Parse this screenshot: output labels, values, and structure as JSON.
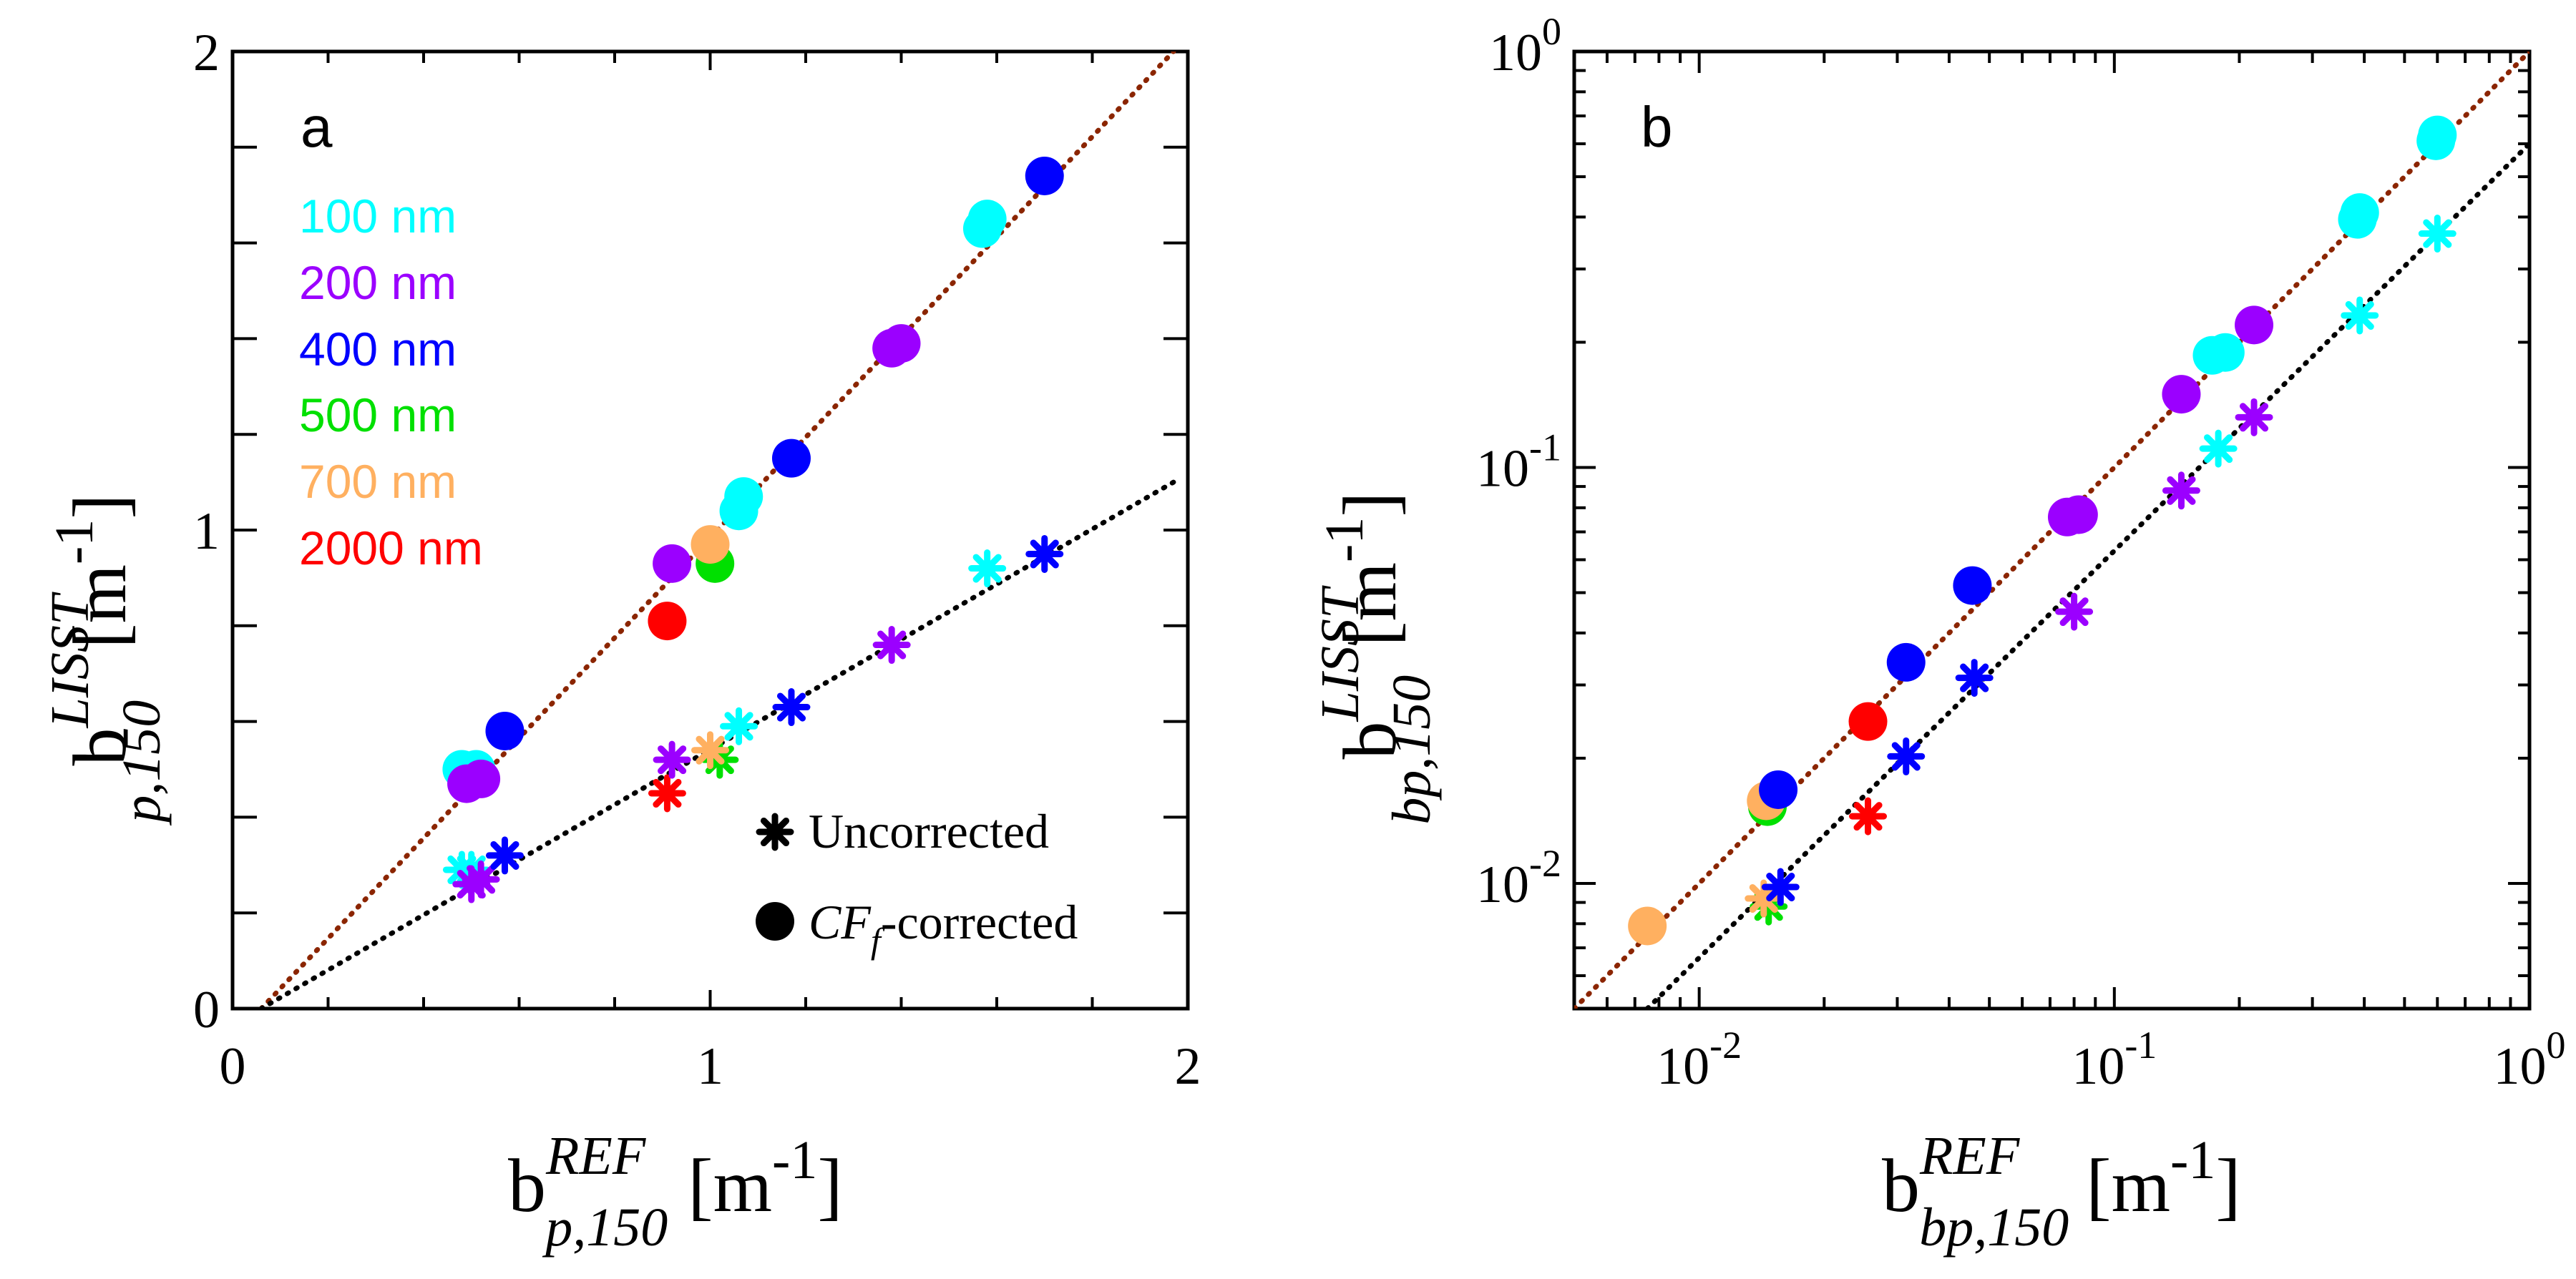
{
  "colors": {
    "100 nm": "#00ffff",
    "200 nm": "#9b00ff",
    "400 nm": "#0000ff",
    "500 nm": "#00e000",
    "700 nm": "#ffb060",
    "2000 nm": "#ff0000",
    "corrected_fit": "#8b2500",
    "uncorrected_fit": "#000000"
  },
  "legend": {
    "sizes": [
      "100 nm",
      "200 nm",
      "400 nm",
      "500 nm",
      "700 nm",
      "2000 nm"
    ],
    "uncorrected": "Uncorrected",
    "corrected_cf": "CF",
    "corrected_sub": "f",
    "corrected_rest": "-corrected"
  },
  "chart_data": [
    {
      "panel": "a",
      "type": "scatter",
      "scale": "linear",
      "xlim": [
        0,
        2
      ],
      "ylim": [
        0,
        2
      ],
      "x_ticks": [
        "0",
        "1",
        "2"
      ],
      "y_ticks": [
        "0",
        "1",
        "2"
      ],
      "x_tick_values": [
        0,
        1,
        2
      ],
      "y_tick_values": [
        0,
        1,
        2
      ],
      "xlabel": {
        "b": "b",
        "sup": "REF",
        "sub": "p,150",
        "unit": "[m",
        "unit_exp": "-1",
        "close": "]"
      },
      "ylabel": {
        "b": "b",
        "sup": "LISST",
        "sub": "p,150",
        "unit": "[m",
        "unit_exp": "-1",
        "close": "]"
      },
      "fit_lines": [
        {
          "name": "CFf-corrected fit",
          "x": [
            0.06,
            1.97
          ],
          "y": [
            0.0,
            2.0
          ]
        },
        {
          "name": "Uncorrected fit",
          "x": [
            0.06,
            1.97
          ],
          "y": [
            0.0,
            1.1
          ]
        }
      ],
      "corrected": [
        {
          "size": "100 nm",
          "x": 0.48,
          "y": 0.5
        },
        {
          "size": "100 nm",
          "x": 0.51,
          "y": 0.5
        },
        {
          "size": "200 nm",
          "x": 0.49,
          "y": 0.47
        },
        {
          "size": "200 nm",
          "x": 0.52,
          "y": 0.48
        },
        {
          "size": "400 nm",
          "x": 0.57,
          "y": 0.58
        },
        {
          "size": "2000 nm",
          "x": 0.91,
          "y": 0.81
        },
        {
          "size": "200 nm",
          "x": 0.92,
          "y": 0.93
        },
        {
          "size": "500 nm",
          "x": 1.01,
          "y": 0.93
        },
        {
          "size": "700 nm",
          "x": 1.0,
          "y": 0.97
        },
        {
          "size": "100 nm",
          "x": 1.06,
          "y": 1.04
        },
        {
          "size": "100 nm",
          "x": 1.07,
          "y": 1.07
        },
        {
          "size": "400 nm",
          "x": 1.17,
          "y": 1.15
        },
        {
          "size": "200 nm",
          "x": 1.38,
          "y": 1.38
        },
        {
          "size": "200 nm",
          "x": 1.4,
          "y": 1.39
        },
        {
          "size": "100 nm",
          "x": 1.57,
          "y": 1.63
        },
        {
          "size": "100 nm",
          "x": 1.58,
          "y": 1.65
        },
        {
          "size": "400 nm",
          "x": 1.7,
          "y": 1.74
        }
      ],
      "uncorrected": [
        {
          "size": "100 nm",
          "x": 0.48,
          "y": 0.29
        },
        {
          "size": "100 nm",
          "x": 0.5,
          "y": 0.29
        },
        {
          "size": "200 nm",
          "x": 0.5,
          "y": 0.26
        },
        {
          "size": "200 nm",
          "x": 0.52,
          "y": 0.27
        },
        {
          "size": "400 nm",
          "x": 0.57,
          "y": 0.32
        },
        {
          "size": "2000 nm",
          "x": 0.91,
          "y": 0.45
        },
        {
          "size": "200 nm",
          "x": 0.92,
          "y": 0.52
        },
        {
          "size": "500 nm",
          "x": 1.02,
          "y": 0.52
        },
        {
          "size": "700 nm",
          "x": 1.0,
          "y": 0.54
        },
        {
          "size": "100 nm",
          "x": 1.06,
          "y": 0.59
        },
        {
          "size": "400 nm",
          "x": 1.17,
          "y": 0.63
        },
        {
          "size": "200 nm",
          "x": 1.38,
          "y": 0.76
        },
        {
          "size": "100 nm",
          "x": 1.58,
          "y": 0.92
        },
        {
          "size": "400 nm",
          "x": 1.7,
          "y": 0.95
        }
      ]
    },
    {
      "panel": "b",
      "type": "scatter",
      "scale": "log",
      "xlim": [
        0.005,
        1
      ],
      "ylim": [
        0.005,
        1
      ],
      "x_tick_values": [
        0.01,
        0.1,
        1
      ],
      "y_tick_values": [
        0.01,
        0.1,
        1
      ],
      "x_ticks": [
        {
          "base": "10",
          "exp": "-2"
        },
        {
          "base": "10",
          "exp": "-1"
        },
        {
          "base": "10",
          "exp": "0"
        }
      ],
      "y_ticks": [
        {
          "base": "10",
          "exp": "-2"
        },
        {
          "base": "10",
          "exp": "-1"
        },
        {
          "base": "10",
          "exp": "0"
        }
      ],
      "xlabel": {
        "b": "b",
        "sup": "REF",
        "sub": "bp,150",
        "unit": "[m",
        "unit_exp": "-1",
        "close": "]"
      },
      "ylabel": {
        "b": "b",
        "sup": "LISST",
        "sub": "bp,150",
        "unit": "[m",
        "unit_exp": "-1",
        "close": "]"
      },
      "fit_lines": [
        {
          "name": "CFf-corrected fit",
          "x": [
            0.005,
            1.0
          ],
          "y": [
            0.005,
            1.0
          ]
        },
        {
          "name": "Uncorrected fit",
          "x": [
            0.0075,
            1.0
          ],
          "y": [
            0.005,
            0.6
          ]
        }
      ],
      "corrected": [
        {
          "size": "700 nm",
          "x": 0.0075,
          "y": 0.0079
        },
        {
          "size": "500 nm",
          "x": 0.0146,
          "y": 0.0153
        },
        {
          "size": "700 nm",
          "x": 0.0145,
          "y": 0.0158
        },
        {
          "size": "400 nm",
          "x": 0.0155,
          "y": 0.0168
        },
        {
          "size": "2000 nm",
          "x": 0.0255,
          "y": 0.0245
        },
        {
          "size": "400 nm",
          "x": 0.0315,
          "y": 0.034
        },
        {
          "size": "400 nm",
          "x": 0.0455,
          "y": 0.052
        },
        {
          "size": "200 nm",
          "x": 0.077,
          "y": 0.076
        },
        {
          "size": "200 nm",
          "x": 0.082,
          "y": 0.077
        },
        {
          "size": "200 nm",
          "x": 0.145,
          "y": 0.15
        },
        {
          "size": "100 nm",
          "x": 0.172,
          "y": 0.186
        },
        {
          "size": "100 nm",
          "x": 0.185,
          "y": 0.189
        },
        {
          "size": "200 nm",
          "x": 0.217,
          "y": 0.22
        },
        {
          "size": "100 nm",
          "x": 0.385,
          "y": 0.395
        },
        {
          "size": "100 nm",
          "x": 0.39,
          "y": 0.41
        },
        {
          "size": "100 nm",
          "x": 0.595,
          "y": 0.61
        },
        {
          "size": "100 nm",
          "x": 0.6,
          "y": 0.63
        }
      ],
      "uncorrected": [
        {
          "size": "500 nm",
          "x": 0.0147,
          "y": 0.0088
        },
        {
          "size": "700 nm",
          "x": 0.0143,
          "y": 0.0092
        },
        {
          "size": "400 nm",
          "x": 0.0157,
          "y": 0.0098
        },
        {
          "size": "2000 nm",
          "x": 0.0255,
          "y": 0.0145
        },
        {
          "size": "400 nm",
          "x": 0.0315,
          "y": 0.0202
        },
        {
          "size": "400 nm",
          "x": 0.046,
          "y": 0.0312
        },
        {
          "size": "200 nm",
          "x": 0.08,
          "y": 0.045
        },
        {
          "size": "200 nm",
          "x": 0.145,
          "y": 0.088
        },
        {
          "size": "100 nm",
          "x": 0.178,
          "y": 0.111
        },
        {
          "size": "200 nm",
          "x": 0.217,
          "y": 0.132
        },
        {
          "size": "100 nm",
          "x": 0.39,
          "y": 0.232
        },
        {
          "size": "100 nm",
          "x": 0.6,
          "y": 0.365
        }
      ]
    }
  ]
}
